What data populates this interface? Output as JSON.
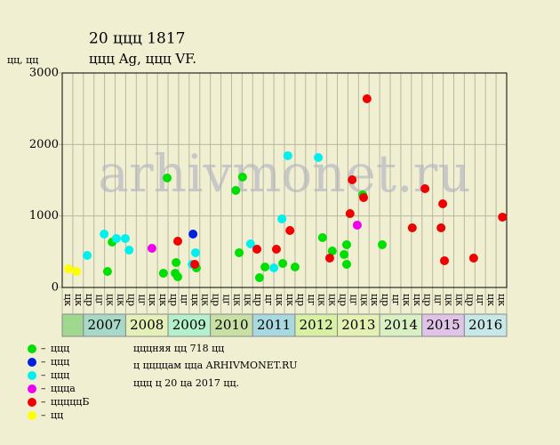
{
  "chart_data": {
    "type": "scatter",
    "title": "20 ццц 1817",
    "subtitle": "ццц Ag, ццц VF.",
    "y_label": "цц, цц",
    "watermark": "arhivmonet.ru",
    "notes": [
      "цццняя цц 718 цц",
      "ц ццццам ццa ARHIVMONET.RU",
      "ццц ц 20 цa 2017 цц."
    ],
    "xlim": [
      2006.5,
      2017
    ],
    "ylim": [
      0,
      3000
    ],
    "yticks": [
      0,
      1000,
      2000,
      3000
    ],
    "grid": true,
    "column_labels": [
      "цк",
      "цк",
      "цр",
      "цг",
      "цк",
      "цк",
      "цр",
      "цг",
      "цк",
      "цк",
      "цр",
      "цг",
      "цк",
      "цк",
      "цр",
      "цг",
      "цк",
      "цк",
      "цр",
      "цг",
      "цк",
      "цк",
      "цр",
      "цг",
      "цк",
      "цк",
      "цр",
      "цг",
      "цк",
      "цк",
      "цр",
      "цг",
      "цк",
      "цк",
      "цр",
      "цг",
      "цк",
      "цк",
      "цр",
      "цг",
      "цк",
      "цк"
    ],
    "year_bands": [
      {
        "label": "2007",
        "color": "#a8d8c8"
      },
      {
        "label": "2008",
        "color": "#e4f0b8"
      },
      {
        "label": "2009",
        "color": "#b4f0cc"
      },
      {
        "label": "2010",
        "color": "#c8e0a4"
      },
      {
        "label": "2011",
        "color": "#a8d8e0"
      },
      {
        "label": "2012",
        "color": "#d8f0a4"
      },
      {
        "label": "2013",
        "color": "#e4f0b4"
      },
      {
        "label": "2014",
        "color": "#d8f0c4"
      },
      {
        "label": "2015",
        "color": "#e0c4e8"
      },
      {
        "label": "2016",
        "color": "#c8e8e8"
      }
    ],
    "lead_band_color": "#a0d890",
    "series": [
      {
        "name": "ццц",
        "color": "#00e000",
        "x": [
          2007.57,
          2007.68,
          2008.98,
          2008.89,
          2009.19,
          2009.17,
          2009.23,
          2009.67,
          2010.6,
          2010.76,
          2010.68,
          2011.16,
          2011.29,
          2011.71,
          2012.0,
          2012.65,
          2012.88,
          2013.16,
          2013.22,
          2013.22,
          2013.6,
          2014.06
        ],
        "values": [
          224,
          635,
          1531,
          199,
          349,
          199,
          149,
          274,
          1357,
          1544,
          486,
          137,
          286,
          336,
          286,
          697,
          510,
          461,
          598,
          324,
          1295,
          598
        ]
      },
      {
        "name": "ццц",
        "color": "#0020e0",
        "x": [
          2009.59
        ],
        "values": [
          747
        ]
      },
      {
        "name": "ццц",
        "color": "#00f0f0",
        "x": [
          2007.09,
          2007.49,
          2007.78,
          2007.99,
          2008.08,
          2009.57,
          2009.65,
          2010.95,
          2011.5,
          2011.69,
          2011.83,
          2012.55
        ],
        "values": [
          448,
          747,
          685,
          685,
          523,
          324,
          486,
          610,
          274,
          959,
          1843,
          1818
        ]
      },
      {
        "name": "цццa",
        "color": "#f000f0",
        "x": [
          2008.62,
          2013.47
        ],
        "values": [
          548,
          872
        ]
      },
      {
        "name": "цццццБ",
        "color": "#f00000",
        "x": [
          2009.23,
          2009.63,
          2011.1,
          2011.56,
          2011.88,
          2012.82,
          2013.3,
          2013.35,
          2013.62,
          2013.7,
          2014.77,
          2015.07,
          2015.45,
          2015.49,
          2015.53,
          2016.22,
          2016.9
        ],
        "values": [
          647,
          324,
          535,
          535,
          797,
          411,
          1033,
          1506,
          1257,
          2639,
          834,
          1382,
          834,
          1170,
          374,
          411,
          984
        ]
      },
      {
        "name": "цц",
        "color": "#ffff00",
        "x": [
          2006.65,
          2006.84
        ],
        "values": [
          261,
          224
        ]
      }
    ]
  }
}
